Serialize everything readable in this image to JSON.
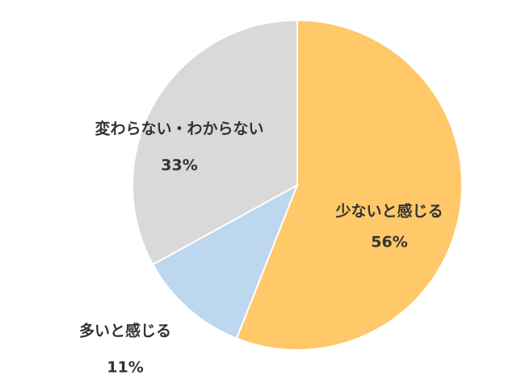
{
  "chart_data": {
    "type": "pie",
    "categories": [
      "少ないと感じる",
      "多いと感じる",
      "変わらない・わからない"
    ],
    "values": [
      56,
      11,
      33
    ],
    "value_labels": [
      "56%",
      "11%",
      "33%"
    ],
    "colors": [
      "#ffc869",
      "#bdd7ee",
      "#d9d9d9"
    ]
  }
}
